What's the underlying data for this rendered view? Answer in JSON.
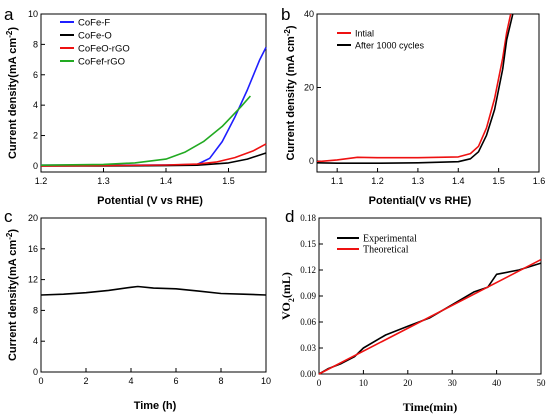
{
  "panel_labels": [
    "a",
    "b",
    "c",
    "d"
  ],
  "chart_data": [
    {
      "type": "line",
      "panel": "a",
      "xlabel": "Potential (V vs RHE)",
      "ylabel": "Current density(mA cm",
      "ylabel_sup": "-2",
      "ylabel_tail": ")",
      "xlim": [
        1.2,
        1.56
      ],
      "ylim": [
        -0.4,
        10
      ],
      "xticks": [
        "1.2",
        "1.3",
        "1.4",
        "1.5"
      ],
      "xtick_values": [
        1.2,
        1.3,
        1.4,
        1.5
      ],
      "yticks": [
        "0",
        "2",
        "4",
        "6",
        "8",
        "10"
      ],
      "ytick_values": [
        0,
        2,
        4,
        6,
        8,
        10
      ],
      "legend_position": "top-left",
      "series": [
        {
          "name": "CoFe-F",
          "color": "#1f1fff",
          "x": [
            1.2,
            1.3,
            1.4,
            1.45,
            1.47,
            1.49,
            1.51,
            1.53,
            1.55,
            1.56
          ],
          "y": [
            0.05,
            0.05,
            0.06,
            0.1,
            0.5,
            1.6,
            3.2,
            5.0,
            7.0,
            7.8
          ]
        },
        {
          "name": "CoFe-O",
          "color": "#000000",
          "x": [
            1.2,
            1.3,
            1.4,
            1.45,
            1.5,
            1.53,
            1.56
          ],
          "y": [
            0.0,
            0.0,
            0.02,
            0.05,
            0.2,
            0.45,
            0.85
          ]
        },
        {
          "name": "CoFeO-rGO",
          "color": "#ee1111",
          "x": [
            1.2,
            1.3,
            1.4,
            1.45,
            1.48,
            1.51,
            1.54,
            1.56
          ],
          "y": [
            0.0,
            0.02,
            0.06,
            0.12,
            0.25,
            0.55,
            1.0,
            1.45
          ]
        },
        {
          "name": "CoFef-rGO",
          "color": "#22aa22",
          "x": [
            1.2,
            1.3,
            1.35,
            1.4,
            1.43,
            1.46,
            1.49,
            1.52,
            1.535
          ],
          "y": [
            0.05,
            0.1,
            0.2,
            0.45,
            0.9,
            1.6,
            2.6,
            3.9,
            4.6
          ]
        }
      ]
    },
    {
      "type": "line",
      "panel": "b",
      "xlabel": "Potential(V vs RHE)",
      "ylabel": "Current density (mA cm",
      "ylabel_sup": "-2",
      "ylabel_tail": ")",
      "xlim": [
        1.05,
        1.6
      ],
      "ylim": [
        -3,
        40
      ],
      "xticks": [
        "1.1",
        "1.2",
        "1.3",
        "1.4",
        "1.5",
        "1.6"
      ],
      "xtick_values": [
        1.1,
        1.2,
        1.3,
        1.4,
        1.5,
        1.6
      ],
      "yticks": [
        "0",
        "20",
        "40"
      ],
      "ytick_values": [
        0,
        20,
        40
      ],
      "legend_position": "top-left",
      "series": [
        {
          "name": "Intial",
          "color": "#ee1111",
          "x": [
            1.05,
            1.1,
            1.15,
            1.2,
            1.3,
            1.4,
            1.43,
            1.45,
            1.47,
            1.49,
            1.51,
            1.52,
            1.53
          ],
          "y": [
            -0.2,
            0.3,
            1.0,
            0.9,
            0.9,
            1.1,
            2.0,
            4.0,
            9.0,
            17.0,
            28.0,
            35.0,
            40.0
          ]
        },
        {
          "name": "After 1000 cycles",
          "color": "#000000",
          "x": [
            1.05,
            1.1,
            1.2,
            1.3,
            1.4,
            1.43,
            1.45,
            1.47,
            1.49,
            1.51,
            1.52,
            1.535
          ],
          "y": [
            -0.5,
            -0.6,
            -0.6,
            -0.5,
            -0.2,
            0.6,
            2.5,
            7.0,
            14.0,
            25.0,
            33.0,
            40.0
          ]
        }
      ]
    },
    {
      "type": "line",
      "panel": "c",
      "xlabel": "Time (h)",
      "ylabel": "Current density(mA cm",
      "ylabel_sup": "-2",
      "ylabel_tail": ")",
      "xlim": [
        0,
        10
      ],
      "ylim": [
        0,
        20
      ],
      "xticks": [
        "0",
        "2",
        "4",
        "6",
        "8",
        "10"
      ],
      "xtick_values": [
        0,
        2,
        4,
        6,
        8,
        10
      ],
      "yticks": [
        "0",
        "4",
        "8",
        "12",
        "16",
        "20"
      ],
      "ytick_values": [
        0,
        4,
        8,
        12,
        16,
        20
      ],
      "series": [
        {
          "name": "",
          "color": "#000000",
          "x": [
            0,
            1,
            2,
            3,
            4,
            4.3,
            5,
            6,
            7,
            8,
            9,
            10
          ],
          "y": [
            10.0,
            10.1,
            10.3,
            10.6,
            11.0,
            11.1,
            10.9,
            10.8,
            10.5,
            10.2,
            10.1,
            10.0
          ]
        }
      ]
    },
    {
      "type": "line",
      "panel": "d",
      "xlabel": "Time(min)",
      "ylabel": "VO",
      "ylabel_sub": "2",
      "ylabel_tail": "(mL)",
      "xlim": [
        0,
        50
      ],
      "ylim": [
        0,
        0.18
      ],
      "xticks": [
        "0",
        "10",
        "20",
        "30",
        "40",
        "50"
      ],
      "xtick_values": [
        0,
        10,
        20,
        30,
        40,
        50
      ],
      "yticks": [
        "0.00",
        "0.03",
        "0.06",
        "0.09",
        "0.12",
        "0.15",
        "0.18"
      ],
      "ytick_values": [
        0,
        0.03,
        0.06,
        0.09,
        0.12,
        0.15,
        0.18
      ],
      "legend_position": "top-left",
      "series": [
        {
          "name": "Experimental",
          "color": "#000000",
          "x": [
            0,
            2,
            5,
            8,
            10,
            15,
            20,
            25,
            30,
            35,
            38,
            40,
            45,
            50
          ],
          "y": [
            0.0,
            0.006,
            0.012,
            0.02,
            0.03,
            0.045,
            0.055,
            0.065,
            0.08,
            0.095,
            0.1,
            0.115,
            0.12,
            0.128
          ]
        },
        {
          "name": "Theoretical",
          "color": "#ee1111",
          "x": [
            0,
            50
          ],
          "y": [
            0.0,
            0.132
          ]
        }
      ]
    }
  ]
}
